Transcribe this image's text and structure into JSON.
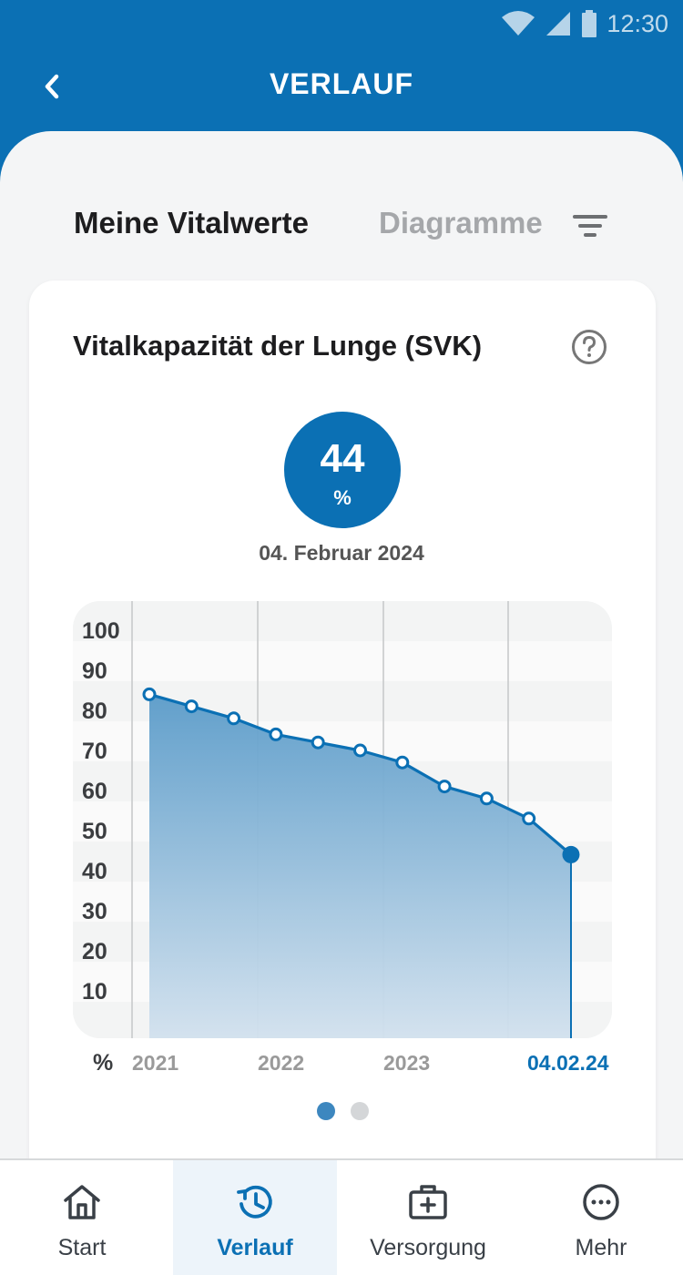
{
  "status_bar": {
    "time": "12:30",
    "icons": [
      "wifi-icon",
      "cell-signal-icon",
      "battery-icon"
    ]
  },
  "header": {
    "title": "VERLAUF",
    "back_icon": "chevron-left-icon"
  },
  "tabs": {
    "active": "Meine Vitalwerte",
    "inactive": "Diagramme",
    "filter_icon": "filter-icon"
  },
  "card": {
    "title": "Vitalkapazität der Lunge (SVK)",
    "help_icon": "question-circle-icon",
    "current_value": "44",
    "current_unit": "%",
    "current_date": "04. Februar 2024"
  },
  "chart_data": {
    "type": "area",
    "y_unit_label": "%",
    "yticks": [
      "100",
      "90",
      "80",
      "70",
      "60",
      "50",
      "40",
      "30",
      "20",
      "10"
    ],
    "ylim": [
      0,
      100
    ],
    "xticks": [
      "2021",
      "2022",
      "2023",
      "04.02.24"
    ],
    "x": [
      "2021-01",
      "2021-05",
      "2021-09",
      "2022-01",
      "2022-05",
      "2022-09",
      "2023-01",
      "2023-05",
      "2023-09",
      "2024-01",
      "2024-02-04"
    ],
    "values": [
      84,
      81,
      78,
      74,
      72,
      70,
      67,
      61,
      58,
      53,
      44
    ],
    "grid": true,
    "colors": {
      "line": "#0b70b4",
      "fill_top": "#5a9bc9",
      "fill_bottom": "#d2e1ee",
      "highlight_label": "#0b70b4",
      "axis_label": "#9a9a9a"
    }
  },
  "pager": {
    "count": 2,
    "active_index": 0
  },
  "nav": [
    {
      "label": "Start",
      "icon": "home-icon",
      "active": false
    },
    {
      "label": "Verlauf",
      "icon": "history-clock-icon",
      "active": true
    },
    {
      "label": "Versorgung",
      "icon": "medical-case-icon",
      "active": false
    },
    {
      "label": "Mehr",
      "icon": "more-icon",
      "active": false
    }
  ]
}
